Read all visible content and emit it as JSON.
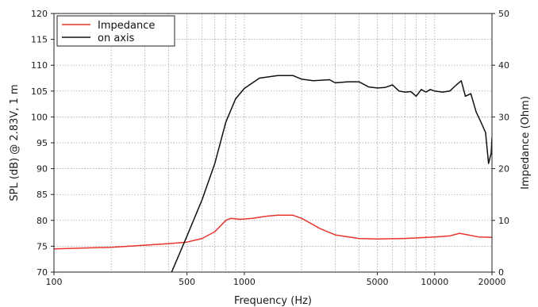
{
  "chart_data": {
    "type": "line",
    "xlabel": "Frequency (Hz)",
    "ylabel": "SPL (dB) @ 2.83V, 1 m",
    "y2label": "Impedance (Ohm)",
    "x_scale": "log",
    "xlim": [
      100,
      20000
    ],
    "ylim": [
      70,
      120
    ],
    "y2lim": [
      0,
      50
    ],
    "grid": true,
    "legend_position": "top-left",
    "x_tick_labels": [
      "100",
      "500",
      "1000",
      "5000",
      "10000",
      "20000"
    ],
    "x_tick_values": [
      100,
      500,
      1000,
      5000,
      10000,
      20000
    ],
    "y_tick_labels": [
      "70",
      "75",
      "80",
      "85",
      "90",
      "95",
      "100",
      "105",
      "110",
      "115",
      "120"
    ],
    "y_tick_values": [
      70,
      75,
      80,
      85,
      90,
      95,
      100,
      105,
      110,
      115,
      120
    ],
    "y2_tick_labels": [
      "0",
      "10",
      "20",
      "30",
      "40",
      "50"
    ],
    "y2_tick_values": [
      0,
      10,
      20,
      30,
      40,
      50
    ],
    "series": [
      {
        "name": "Impedance",
        "color": "#e8352c",
        "axis": "right",
        "x": [
          100,
          200,
          300,
          400,
          500,
          600,
          700,
          800,
          850,
          950,
          1100,
          1300,
          1500,
          1800,
          2000,
          2500,
          3000,
          4000,
          5000,
          7000,
          10000,
          12000,
          13500,
          15000,
          17000,
          20000
        ],
        "y": [
          4.5,
          4.8,
          5.2,
          5.5,
          5.8,
          6.5,
          7.8,
          10.0,
          10.4,
          10.2,
          10.4,
          10.8,
          11.0,
          11.0,
          10.4,
          8.4,
          7.2,
          6.5,
          6.4,
          6.5,
          6.8,
          7.0,
          7.5,
          7.2,
          6.8,
          6.7
        ]
      },
      {
        "name": "on axis",
        "color": "#111111",
        "axis": "left",
        "x": [
          415,
          500,
          600,
          700,
          800,
          900,
          1000,
          1200,
          1500,
          1800,
          2000,
          2300,
          2800,
          3000,
          3500,
          4000,
          4500,
          5000,
          5500,
          6000,
          6500,
          7000,
          7500,
          8000,
          8500,
          9000,
          9500,
          10000,
          11000,
          12000,
          13000,
          13800,
          14500,
          15500,
          16500,
          17500,
          18500,
          19200,
          19800,
          20000
        ],
        "y": [
          70.0,
          77.0,
          84.0,
          91.0,
          99.0,
          103.5,
          105.5,
          107.5,
          108.0,
          108.0,
          107.3,
          107.0,
          107.2,
          106.6,
          106.8,
          106.8,
          105.8,
          105.6,
          105.7,
          106.2,
          105.0,
          104.8,
          104.9,
          104.0,
          105.3,
          104.8,
          105.3,
          105.0,
          104.8,
          105.0,
          106.2,
          107.0,
          104.0,
          104.5,
          101.0,
          99.0,
          97.0,
          91.0,
          93.0,
          96.0
        ]
      }
    ]
  }
}
